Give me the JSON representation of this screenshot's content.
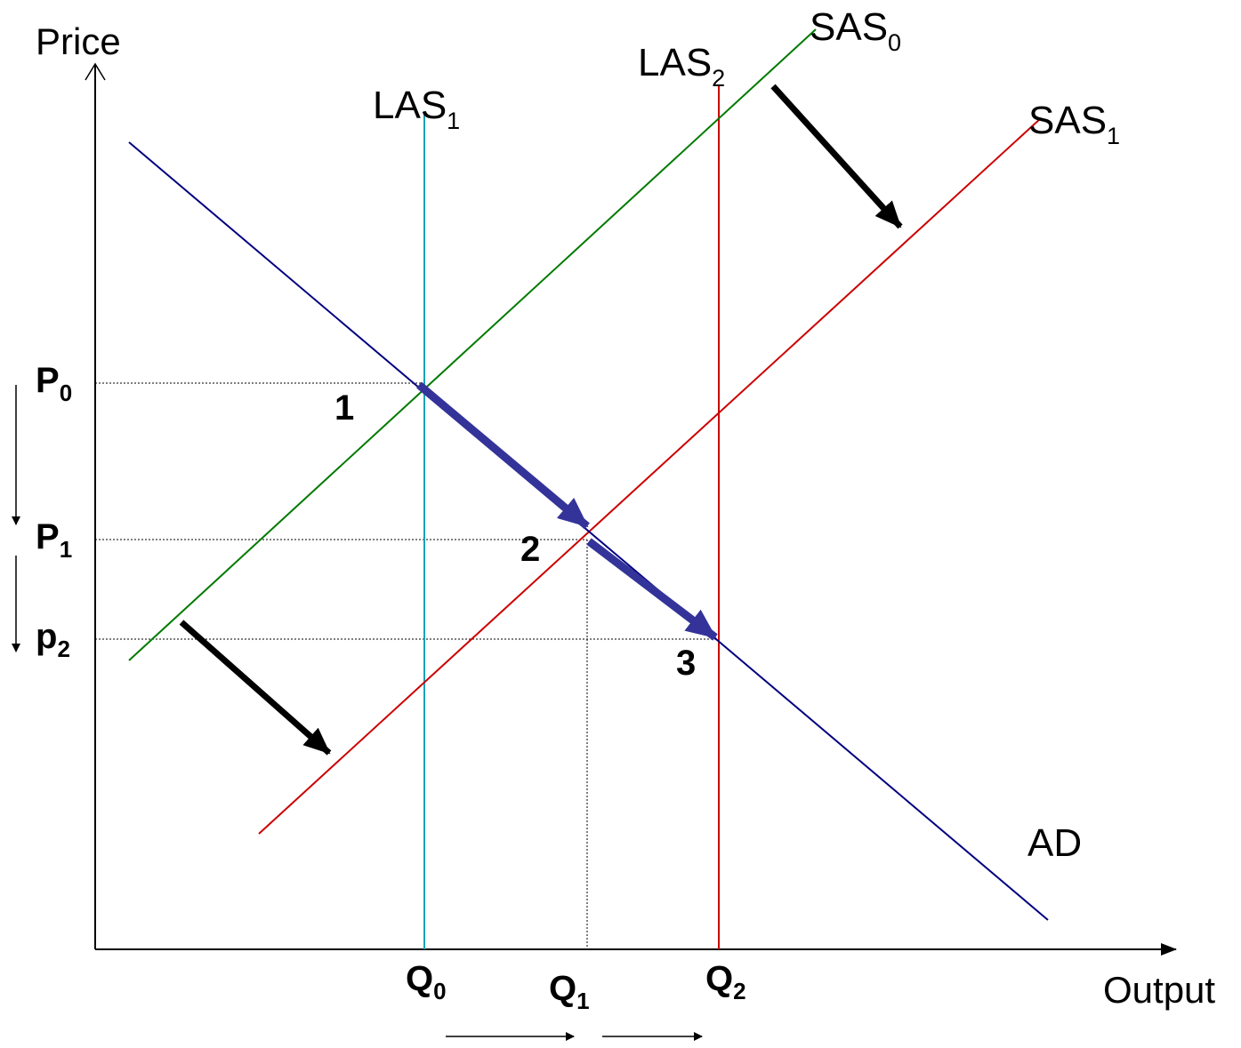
{
  "axes": {
    "y_label": "Price",
    "x_label": "Output"
  },
  "curves": {
    "las1": {
      "label": "LAS",
      "subscript": "1",
      "color": "#1aa3b8"
    },
    "las2": {
      "label": "LAS",
      "subscript": "2",
      "color": "#cc0000"
    },
    "sas0": {
      "label": "SAS",
      "subscript": "0",
      "color": "#007a00"
    },
    "sas1": {
      "label": "SAS",
      "subscript": "1",
      "color": "#cc0000"
    },
    "ad": {
      "label": "AD",
      "color": "#000080"
    }
  },
  "price_levels": [
    {
      "label": "P",
      "subscript": "0"
    },
    {
      "label": "P",
      "subscript": "1"
    },
    {
      "label": "p",
      "subscript": "2"
    }
  ],
  "quantity_levels": [
    {
      "label": "Q",
      "subscript": "0"
    },
    {
      "label": "Q",
      "subscript": "1"
    },
    {
      "label": "Q",
      "subscript": "2"
    }
  ],
  "points": [
    "1",
    "2",
    "3"
  ],
  "colors": {
    "path_arrow": "#333399",
    "shift_arrow": "#000000",
    "axis": "#000000"
  }
}
